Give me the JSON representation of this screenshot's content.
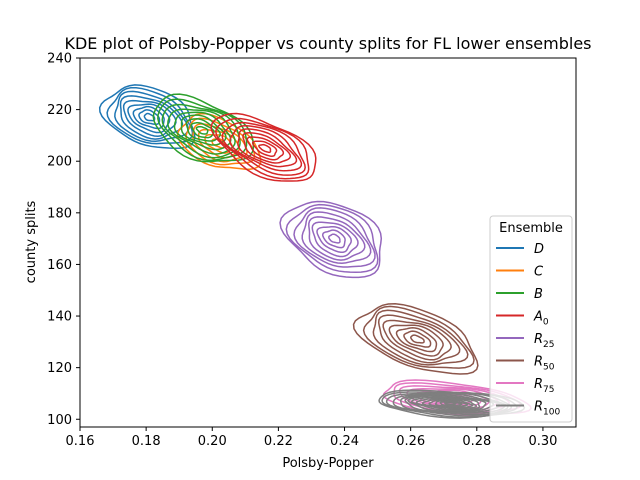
{
  "chart_data": {
    "type": "contour",
    "title": "KDE plot of Polsby-Popper vs county splits for FL lower ensembles",
    "xlabel": "Polsby-Popper",
    "ylabel": "county splits",
    "xlim": [
      0.16,
      0.31
    ],
    "ylim": [
      97,
      240
    ],
    "xticks": [
      0.16,
      0.18,
      0.2,
      0.22,
      0.24,
      0.26,
      0.28,
      0.3
    ],
    "xtick_labels": [
      "0.16",
      "0.18",
      "0.20",
      "0.22",
      "0.24",
      "0.26",
      "0.28",
      "0.30"
    ],
    "yticks": [
      100,
      120,
      140,
      160,
      180,
      200,
      220,
      240
    ],
    "ytick_labels": [
      "100",
      "120",
      "140",
      "160",
      "180",
      "200",
      "220",
      "240"
    ],
    "grid": false,
    "legend": {
      "title": "Ensemble",
      "placement": "lower-right"
    },
    "series": [
      {
        "name": "D",
        "sub": "",
        "color": "#1f77b4",
        "center": [
          0.181,
          217
        ],
        "spread": [
          0.0145,
          11
        ],
        "tilt": -0.35,
        "levels": 9
      },
      {
        "name": "C",
        "sub": "",
        "color": "#ff7f0e",
        "center": [
          0.202,
          207
        ],
        "spread": [
          0.013,
          9
        ],
        "tilt": -0.4,
        "levels": 6
      },
      {
        "name": "B",
        "sub": "",
        "color": "#2ca02c",
        "center": [
          0.197,
          212
        ],
        "spread": [
          0.016,
          11
        ],
        "tilt": -0.4,
        "levels": 9
      },
      {
        "name": "A",
        "sub": "0",
        "color": "#d62728",
        "center": [
          0.216,
          205
        ],
        "spread": [
          0.017,
          10
        ],
        "tilt": -0.45,
        "levels": 9
      },
      {
        "name": "R",
        "sub": "25",
        "color": "#9467bd",
        "center": [
          0.237,
          170
        ],
        "spread": [
          0.016,
          13
        ],
        "tilt": -0.45,
        "levels": 9
      },
      {
        "name": "R",
        "sub": "50",
        "color": "#8c564b",
        "center": [
          0.262,
          131
        ],
        "spread": [
          0.019,
          11
        ],
        "tilt": -0.35,
        "levels": 9
      },
      {
        "name": "R",
        "sub": "75",
        "color": "#e377c2",
        "center": [
          0.273,
          108
        ],
        "spread": [
          0.022,
          6
        ],
        "tilt": -0.1,
        "levels": 8
      },
      {
        "name": "R",
        "sub": "100",
        "color": "#7f7f7f",
        "center": [
          0.272,
          106
        ],
        "spread": [
          0.022,
          5
        ],
        "tilt": -0.05,
        "levels": 14
      }
    ]
  }
}
